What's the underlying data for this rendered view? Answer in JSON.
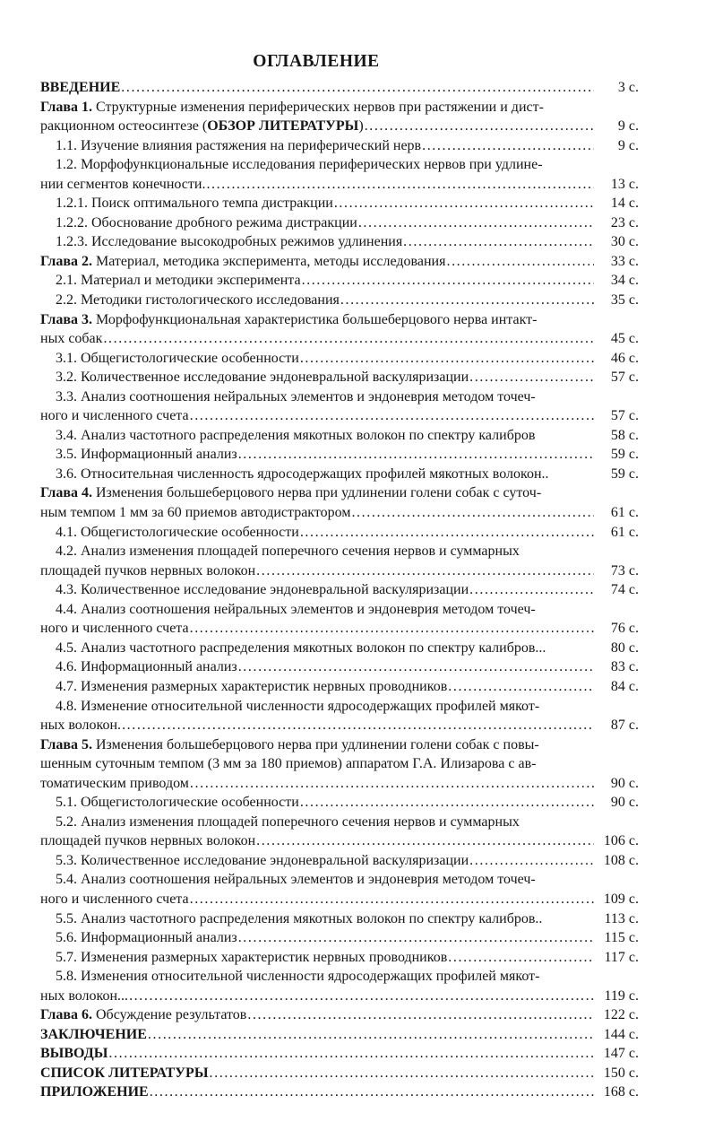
{
  "title": "ОГЛАВЛЕНИЕ",
  "page_suffix": "с.",
  "leader_dots": "......................................................................................................................................................................",
  "colors": {
    "paper": "#ffffff",
    "ink": "#161616"
  },
  "toc": {
    "lines": [
      {
        "indent": 0,
        "segments": [
          {
            "text": "ВВЕДЕНИЕ",
            "bold": true
          }
        ],
        "leader": true,
        "page": "3 с."
      },
      {
        "indent": 0,
        "segments": [
          {
            "text": "Глава 1.",
            "bold": true
          },
          {
            "text": " Структурные изменения периферических нервов при растяжении и дист-",
            "bold": false
          }
        ],
        "leader": false,
        "page": null
      },
      {
        "indent": 0,
        "segments": [
          {
            "text": "ракционном остеосинтезе (",
            "bold": false
          },
          {
            "text": "ОБЗОР ЛИТЕРАТУРЫ",
            "bold": true
          },
          {
            "text": ")",
            "bold": false
          }
        ],
        "leader": true,
        "page": "9 с."
      },
      {
        "indent": 1,
        "segments": [
          {
            "text": "1.1. Изучение влияния растяжения на периферический нерв",
            "bold": false
          }
        ],
        "leader": true,
        "page": "9 с."
      },
      {
        "indent": 1,
        "segments": [
          {
            "text": "1.2. Морфофункциональные исследования периферических нервов при удлине-",
            "bold": false
          }
        ],
        "leader": false,
        "page": null
      },
      {
        "indent": 0,
        "segments": [
          {
            "text": "нии сегментов конечности. ",
            "bold": false
          }
        ],
        "leader": true,
        "page": "13 с."
      },
      {
        "indent": 1,
        "segments": [
          {
            "text": "1.2.1. Поиск оптимального темпа дистракции",
            "bold": false
          }
        ],
        "leader": true,
        "page": "14 с."
      },
      {
        "indent": 1,
        "segments": [
          {
            "text": "1.2.2. Обоснование дробного режима дистракции",
            "bold": false
          }
        ],
        "leader": true,
        "page": "23 с."
      },
      {
        "indent": 1,
        "segments": [
          {
            "text": "1.2.3. Исследование высокодробных режимов удлинения",
            "bold": false
          }
        ],
        "leader": true,
        "page": "30 с."
      },
      {
        "indent": 0,
        "segments": [
          {
            "text": "Глава 2.",
            "bold": true
          },
          {
            "text": " Материал, методика эксперимента, методы исследования",
            "bold": false
          }
        ],
        "leader": true,
        "page": "33 с."
      },
      {
        "indent": 1,
        "segments": [
          {
            "text": "2.1. Материал и методики эксперимента",
            "bold": false
          }
        ],
        "leader": true,
        "page": "34 с."
      },
      {
        "indent": 1,
        "segments": [
          {
            "text": "2.2. Методики гистологического исследования",
            "bold": false
          }
        ],
        "leader": true,
        "page": "35 с."
      },
      {
        "indent": 0,
        "segments": [
          {
            "text": "Глава 3.",
            "bold": true
          },
          {
            "text": " Морфофункциональная характеристика большеберцового нерва интакт-",
            "bold": false
          }
        ],
        "leader": false,
        "page": null
      },
      {
        "indent": 0,
        "segments": [
          {
            "text": "ных собак",
            "bold": false
          }
        ],
        "leader": true,
        "page": "45 с."
      },
      {
        "indent": 1,
        "segments": [
          {
            "text": "3.1. Общегистологические особенности",
            "bold": false
          }
        ],
        "leader": true,
        "page": "46 с."
      },
      {
        "indent": 1,
        "segments": [
          {
            "text": "3.2. Количественное исследование эндоневральной васкуляризации",
            "bold": false
          }
        ],
        "leader": true,
        "page": "57 с."
      },
      {
        "indent": 1,
        "segments": [
          {
            "text": "3.3. Анализ соотношения нейральных элементов и эндоневрия методом точеч-",
            "bold": false
          }
        ],
        "leader": false,
        "page": null
      },
      {
        "indent": 0,
        "segments": [
          {
            "text": "ного и численного счета",
            "bold": false
          }
        ],
        "leader": true,
        "page": "57 с."
      },
      {
        "indent": 1,
        "segments": [
          {
            "text": "3.4. Анализ частотного распределения мякотных волокон по спектру калибров",
            "bold": false
          }
        ],
        "leader": false,
        "page": "58 с."
      },
      {
        "indent": 1,
        "segments": [
          {
            "text": "3.5. Информационный анализ",
            "bold": false
          }
        ],
        "leader": true,
        "page": "59 с."
      },
      {
        "indent": 1,
        "segments": [
          {
            "text": "3.6. Относительная численность ядросодержащих профилей мякотных волокон..",
            "bold": false
          }
        ],
        "leader": false,
        "page": "59 с."
      },
      {
        "indent": 0,
        "segments": [
          {
            "text": "Глава 4.",
            "bold": true
          },
          {
            "text": " Изменения большеберцового нерва при удлинении голени собак с суточ-",
            "bold": false
          }
        ],
        "leader": false,
        "page": null
      },
      {
        "indent": 0,
        "segments": [
          {
            "text": "ным темпом 1 мм за 60 приемов автодистрактором",
            "bold": false
          }
        ],
        "leader": true,
        "page": "61 с."
      },
      {
        "indent": 1,
        "segments": [
          {
            "text": "4.1. Общегистологические особенности",
            "bold": false
          }
        ],
        "leader": true,
        "page": "61 с."
      },
      {
        "indent": 1,
        "segments": [
          {
            "text": "4.2. Анализ изменения площадей поперечного сечения нервов и суммарных",
            "bold": false
          }
        ],
        "leader": false,
        "page": null
      },
      {
        "indent": 0,
        "segments": [
          {
            "text": "площадей пучков нервных волокон",
            "bold": false
          }
        ],
        "leader": true,
        "page": "73 с."
      },
      {
        "indent": 1,
        "segments": [
          {
            "text": "4.3. Количественное исследование эндоневральной васкуляризации",
            "bold": false
          }
        ],
        "leader": true,
        "page": "74 с."
      },
      {
        "indent": 1,
        "segments": [
          {
            "text": "4.4. Анализ соотношения нейральных элементов и эндоневрия методом точеч-",
            "bold": false
          }
        ],
        "leader": false,
        "page": null
      },
      {
        "indent": 0,
        "segments": [
          {
            "text": "ного и численного счета",
            "bold": false
          }
        ],
        "leader": true,
        "page": "76 с."
      },
      {
        "indent": 1,
        "segments": [
          {
            "text": "4.5. Анализ частотного распределения мякотных волокон по спектру калибров...",
            "bold": false
          }
        ],
        "leader": false,
        "page": "80 с."
      },
      {
        "indent": 1,
        "segments": [
          {
            "text": "4.6. Информационный анализ",
            "bold": false
          }
        ],
        "leader": true,
        "page": "83 с."
      },
      {
        "indent": 1,
        "segments": [
          {
            "text": "4.7. Изменения размерных характеристик нервных проводников",
            "bold": false
          }
        ],
        "leader": true,
        "page": "84 с."
      },
      {
        "indent": 1,
        "segments": [
          {
            "text": "4.8. Изменение относительной численности ядросодержащих профилей мякот-",
            "bold": false
          }
        ],
        "leader": false,
        "page": null
      },
      {
        "indent": 0,
        "segments": [
          {
            "text": "ных волокон. ",
            "bold": false
          }
        ],
        "leader": true,
        "page": "87 с."
      },
      {
        "indent": 0,
        "segments": [
          {
            "text": "Глава 5.",
            "bold": true
          },
          {
            "text": " Изменения большеберцового нерва при удлинении голени собак с повы-",
            "bold": false
          }
        ],
        "leader": false,
        "page": null
      },
      {
        "indent": 0,
        "segments": [
          {
            "text": "шенным суточным темпом (3 мм за 180 приемов) аппаратом Г.А. Илизарова с ав-",
            "bold": false
          }
        ],
        "leader": false,
        "page": null
      },
      {
        "indent": 0,
        "segments": [
          {
            "text": "томатическим приводом",
            "bold": false
          }
        ],
        "leader": true,
        "page": "90 с."
      },
      {
        "indent": 1,
        "segments": [
          {
            "text": "5.1. Общегистологические особенности",
            "bold": false
          }
        ],
        "leader": true,
        "page": "90 с."
      },
      {
        "indent": 1,
        "segments": [
          {
            "text": "5.2. Анализ изменения площадей поперечного сечения нервов и суммарных",
            "bold": false
          }
        ],
        "leader": false,
        "page": null
      },
      {
        "indent": 0,
        "segments": [
          {
            "text": "площадей пучков нервных волокон",
            "bold": false
          }
        ],
        "leader": true,
        "page": "106 с."
      },
      {
        "indent": 1,
        "segments": [
          {
            "text": "5.3. Количественное исследование эндоневральной васкуляризации",
            "bold": false
          }
        ],
        "leader": true,
        "page": "108 с."
      },
      {
        "indent": 1,
        "segments": [
          {
            "text": "5.4. Анализ соотношения нейральных элементов и эндоневрия методом точеч-",
            "bold": false
          }
        ],
        "leader": false,
        "page": null
      },
      {
        "indent": 0,
        "segments": [
          {
            "text": "ного и численного счета",
            "bold": false
          }
        ],
        "leader": true,
        "page": "109 с."
      },
      {
        "indent": 1,
        "segments": [
          {
            "text": "5.5. Анализ частотного распределения мякотных волокон по спектру калибров..",
            "bold": false
          }
        ],
        "leader": false,
        "page": "113 с."
      },
      {
        "indent": 1,
        "segments": [
          {
            "text": "5.6. Информационный анализ",
            "bold": false
          }
        ],
        "leader": true,
        "page": "115 с."
      },
      {
        "indent": 1,
        "segments": [
          {
            "text": "5.7. Изменения размерных характеристик нервных проводников",
            "bold": false
          }
        ],
        "leader": true,
        "page": "117 с."
      },
      {
        "indent": 1,
        "segments": [
          {
            "text": "5.8. Изменения относительной численности ядросодержащих профилей мякот-",
            "bold": false
          }
        ],
        "leader": false,
        "page": null
      },
      {
        "indent": 0,
        "segments": [
          {
            "text": "ных волокон...",
            "bold": false
          }
        ],
        "leader": true,
        "page": "119 с."
      },
      {
        "indent": 0,
        "segments": [
          {
            "text": "Глава 6.",
            "bold": true
          },
          {
            "text": " Обсуждение результатов",
            "bold": false
          }
        ],
        "leader": true,
        "page": "122 с."
      },
      {
        "indent": 0,
        "segments": [
          {
            "text": "ЗАКЛЮЧЕНИЕ",
            "bold": true
          }
        ],
        "leader": true,
        "page": "144 с."
      },
      {
        "indent": 0,
        "segments": [
          {
            "text": "ВЫВОДЫ",
            "bold": true
          }
        ],
        "leader": true,
        "page": "147 с."
      },
      {
        "indent": 0,
        "segments": [
          {
            "text": "СПИСОК ЛИТЕРАТУРЫ",
            "bold": true
          }
        ],
        "leader": true,
        "page": "150 с."
      },
      {
        "indent": 0,
        "segments": [
          {
            "text": "ПРИЛОЖЕНИЕ",
            "bold": true
          }
        ],
        "leader": true,
        "page": "168 с."
      }
    ]
  }
}
